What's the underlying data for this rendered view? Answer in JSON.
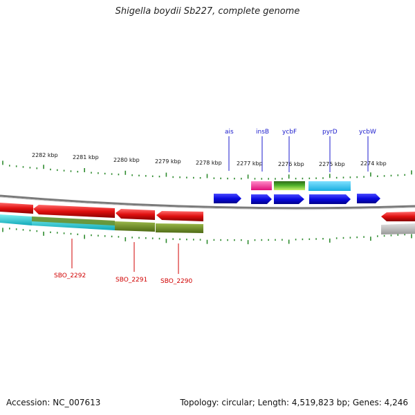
{
  "title": "Shigella boydii Sb227, complete genome",
  "footer": {
    "accession": "Accession: NC_007613",
    "topology": "Topology: circular; Length: 4,519,823 bp; Genes: 4,246"
  },
  "colors": {
    "backbone": "#8a8a8a",
    "tick": "#2e8b2e",
    "top_label": "#1a1acc",
    "bottom_label": "#d00000",
    "blue": "#1010e0",
    "red": "#e01010",
    "magenta": "#ff2d9a",
    "green": "#4caf2a",
    "cyan": "#38c8ea",
    "olive": "#6b8e23",
    "teal": "#20c0c8",
    "gray": "#b0b0b0"
  },
  "scale_labels": [
    "2282 kbp",
    "2281 kbp",
    "2280 kbp",
    "2279 kbp",
    "2278 kbp",
    "2277 kbp",
    "2276 kbp",
    "2275 kbp",
    "2274 kbp"
  ],
  "top_genes": [
    "ais",
    "insB",
    "ycbF",
    "pyrD",
    "ycbW"
  ],
  "bottom_genes": [
    "SBO_2292",
    "SBO_2291",
    "SBO_2290"
  ]
}
